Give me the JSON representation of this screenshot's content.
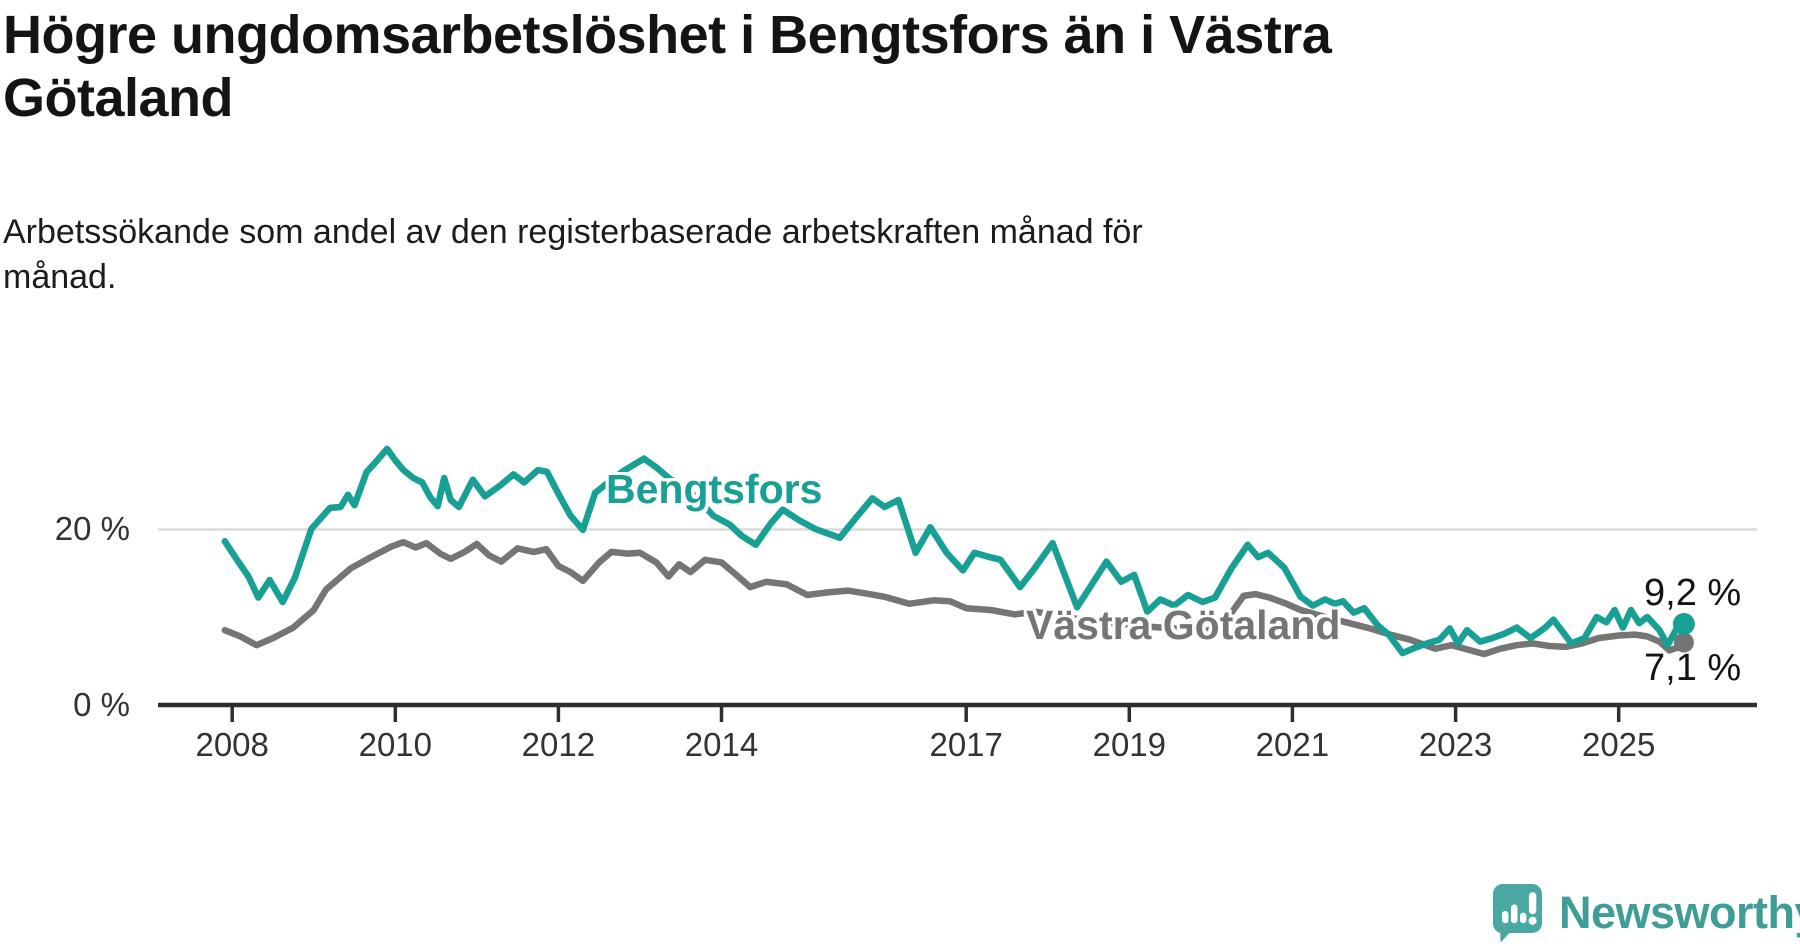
{
  "header": {
    "title": "Högre ungdomsarbetslöshet i Bengtsfors än i Västra Götaland",
    "title_lines": [
      "Högre ungdomsarbetslöshet i Bengtsfors än i Västra",
      "Götaland"
    ],
    "subtitle": "Arbetssökande som andel av den registerbaserade arbetskraften månad för månad.",
    "subtitle_lines": [
      "Arbetssökande som andel av den registerbaserade arbetskraften månad för",
      "månad."
    ]
  },
  "colors": {
    "accent_teal": "#17a093",
    "series_gray": "#757575",
    "axis": "#2f2f2f",
    "gridline": "#dbdbdb",
    "text": "#1a1a1a",
    "logo_bubble": "#4aa8a2",
    "logo_text": "#3f9d97"
  },
  "branding": {
    "logo_text": "Newsworthy",
    "logo_icon": "speech-bubble-bar-chart-exclamation"
  },
  "chart_data": {
    "type": "line",
    "title": "Högre ungdomsarbetslöshet i Bengtsfors än i Västra Götaland",
    "subtitle": "Arbetssökande som andel av den registerbaserade arbetskraften månad för månad.",
    "unit": "%",
    "x_axis": {
      "range": [
        2007.9,
        2025.85
      ],
      "ticks": [
        2008,
        2010,
        2012,
        2014,
        2017,
        2019,
        2021,
        2023,
        2025
      ],
      "grid": false
    },
    "y_axis": {
      "range": [
        0,
        31
      ],
      "ticks": [
        {
          "value": 0,
          "label": "0 %"
        },
        {
          "value": 20,
          "label": "20 %"
        }
      ],
      "gridline_at": 20
    },
    "legend_position": "inline-labels",
    "series": [
      {
        "name": "Bengtsfors",
        "color": "#17a093",
        "end_value": 9.2,
        "end_label": "9,2 %",
        "points": [
          [
            2007.91,
            18.6
          ],
          [
            2008.08,
            16.2
          ],
          [
            2008.2,
            14.6
          ],
          [
            2008.32,
            12.2
          ],
          [
            2008.46,
            14.2
          ],
          [
            2008.55,
            12.8
          ],
          [
            2008.62,
            11.7
          ],
          [
            2008.77,
            14.5
          ],
          [
            2008.97,
            20.0
          ],
          [
            2009.2,
            22.4
          ],
          [
            2009.33,
            22.5
          ],
          [
            2009.42,
            23.9
          ],
          [
            2009.5,
            22.7
          ],
          [
            2009.65,
            26.5
          ],
          [
            2009.75,
            27.5
          ],
          [
            2009.9,
            29.1
          ],
          [
            2010.0,
            27.8
          ],
          [
            2010.1,
            26.7
          ],
          [
            2010.22,
            25.8
          ],
          [
            2010.33,
            25.3
          ],
          [
            2010.43,
            23.6
          ],
          [
            2010.52,
            22.6
          ],
          [
            2010.6,
            25.8
          ],
          [
            2010.68,
            23.3
          ],
          [
            2010.78,
            22.5
          ],
          [
            2010.95,
            25.6
          ],
          [
            2011.1,
            23.7
          ],
          [
            2011.28,
            24.9
          ],
          [
            2011.45,
            26.2
          ],
          [
            2011.58,
            25.3
          ],
          [
            2011.75,
            26.7
          ],
          [
            2011.86,
            26.5
          ],
          [
            2012.0,
            24.0
          ],
          [
            2012.15,
            21.5
          ],
          [
            2012.3,
            19.9
          ],
          [
            2012.45,
            24.1
          ],
          [
            2012.6,
            25.2
          ],
          [
            2012.8,
            26.6
          ],
          [
            2013.05,
            28.0
          ],
          [
            2013.2,
            27.0
          ],
          [
            2013.38,
            25.6
          ],
          [
            2013.55,
            24.8
          ],
          [
            2013.75,
            23.0
          ],
          [
            2013.9,
            21.5
          ],
          [
            2014.1,
            20.5
          ],
          [
            2014.25,
            19.2
          ],
          [
            2014.42,
            18.2
          ],
          [
            2014.6,
            20.6
          ],
          [
            2014.75,
            22.2
          ],
          [
            2014.95,
            21.0
          ],
          [
            2015.15,
            20.0
          ],
          [
            2015.3,
            19.5
          ],
          [
            2015.45,
            19.0
          ],
          [
            2015.65,
            21.3
          ],
          [
            2015.85,
            23.5
          ],
          [
            2016.0,
            22.5
          ],
          [
            2016.17,
            23.3
          ],
          [
            2016.38,
            17.3
          ],
          [
            2016.56,
            20.2
          ],
          [
            2016.76,
            17.3
          ],
          [
            2016.96,
            15.3
          ],
          [
            2017.1,
            17.3
          ],
          [
            2017.25,
            16.9
          ],
          [
            2017.42,
            16.5
          ],
          [
            2017.66,
            13.4
          ],
          [
            2017.82,
            15.3
          ],
          [
            2018.06,
            18.4
          ],
          [
            2018.36,
            11.1
          ],
          [
            2018.72,
            16.3
          ],
          [
            2018.9,
            14.0
          ],
          [
            2019.06,
            14.8
          ],
          [
            2019.22,
            10.6
          ],
          [
            2019.38,
            12.0
          ],
          [
            2019.55,
            11.3
          ],
          [
            2019.72,
            12.5
          ],
          [
            2019.9,
            11.7
          ],
          [
            2020.05,
            12.2
          ],
          [
            2020.25,
            15.5
          ],
          [
            2020.45,
            18.2
          ],
          [
            2020.58,
            16.8
          ],
          [
            2020.7,
            17.3
          ],
          [
            2020.9,
            15.6
          ],
          [
            2021.1,
            12.3
          ],
          [
            2021.25,
            11.3
          ],
          [
            2021.4,
            12.0
          ],
          [
            2021.52,
            11.5
          ],
          [
            2021.62,
            11.8
          ],
          [
            2021.75,
            10.5
          ],
          [
            2021.88,
            11.0
          ],
          [
            2022.05,
            9.0
          ],
          [
            2022.18,
            8.0
          ],
          [
            2022.35,
            5.9
          ],
          [
            2022.5,
            6.5
          ],
          [
            2022.65,
            7.0
          ],
          [
            2022.8,
            7.4
          ],
          [
            2022.93,
            8.7
          ],
          [
            2023.03,
            7.0
          ],
          [
            2023.14,
            8.5
          ],
          [
            2023.3,
            7.2
          ],
          [
            2023.45,
            7.6
          ],
          [
            2023.6,
            8.1
          ],
          [
            2023.75,
            8.8
          ],
          [
            2023.92,
            7.6
          ],
          [
            2024.1,
            8.8
          ],
          [
            2024.2,
            9.7
          ],
          [
            2024.42,
            7.0
          ],
          [
            2024.58,
            7.6
          ],
          [
            2024.73,
            10.0
          ],
          [
            2024.85,
            9.4
          ],
          [
            2024.95,
            10.8
          ],
          [
            2025.05,
            8.8
          ],
          [
            2025.15,
            10.8
          ],
          [
            2025.25,
            9.3
          ],
          [
            2025.35,
            10.0
          ],
          [
            2025.5,
            8.5
          ],
          [
            2025.6,
            6.8
          ],
          [
            2025.7,
            8.5
          ],
          [
            2025.8,
            9.2
          ]
        ]
      },
      {
        "name": "Västra Götaland",
        "color": "#757575",
        "end_value": 7.1,
        "end_label": "7,1 %",
        "points": [
          [
            2007.91,
            8.5
          ],
          [
            2008.1,
            7.8
          ],
          [
            2008.3,
            6.8
          ],
          [
            2008.5,
            7.6
          ],
          [
            2008.75,
            8.8
          ],
          [
            2009.0,
            10.8
          ],
          [
            2009.15,
            13.1
          ],
          [
            2009.45,
            15.5
          ],
          [
            2009.7,
            16.8
          ],
          [
            2009.95,
            18.0
          ],
          [
            2010.1,
            18.5
          ],
          [
            2010.25,
            17.9
          ],
          [
            2010.38,
            18.4
          ],
          [
            2010.55,
            17.2
          ],
          [
            2010.68,
            16.6
          ],
          [
            2010.85,
            17.4
          ],
          [
            2011.0,
            18.3
          ],
          [
            2011.15,
            17.0
          ],
          [
            2011.3,
            16.3
          ],
          [
            2011.5,
            17.8
          ],
          [
            2011.7,
            17.4
          ],
          [
            2011.85,
            17.7
          ],
          [
            2012.0,
            15.8
          ],
          [
            2012.15,
            15.1
          ],
          [
            2012.3,
            14.1
          ],
          [
            2012.5,
            16.2
          ],
          [
            2012.65,
            17.4
          ],
          [
            2012.85,
            17.2
          ],
          [
            2013.0,
            17.3
          ],
          [
            2013.2,
            16.2
          ],
          [
            2013.35,
            14.6
          ],
          [
            2013.48,
            16.0
          ],
          [
            2013.62,
            15.1
          ],
          [
            2013.8,
            16.5
          ],
          [
            2014.0,
            16.2
          ],
          [
            2014.18,
            14.8
          ],
          [
            2014.35,
            13.4
          ],
          [
            2014.55,
            14.0
          ],
          [
            2014.8,
            13.7
          ],
          [
            2015.05,
            12.5
          ],
          [
            2015.3,
            12.8
          ],
          [
            2015.55,
            13.0
          ],
          [
            2015.75,
            12.7
          ],
          [
            2016.0,
            12.3
          ],
          [
            2016.3,
            11.5
          ],
          [
            2016.6,
            11.9
          ],
          [
            2016.8,
            11.8
          ],
          [
            2017.0,
            11.0
          ],
          [
            2017.3,
            10.8
          ],
          [
            2017.6,
            10.3
          ],
          [
            2017.85,
            10.6
          ],
          [
            2018.1,
            10.2
          ],
          [
            2018.4,
            9.7
          ],
          [
            2018.75,
            9.4
          ],
          [
            2019.1,
            9.0
          ],
          [
            2019.4,
            8.8
          ],
          [
            2019.7,
            8.6
          ],
          [
            2019.95,
            8.4
          ],
          [
            2020.2,
            9.8
          ],
          [
            2020.4,
            12.4
          ],
          [
            2020.55,
            12.6
          ],
          [
            2020.72,
            12.2
          ],
          [
            2020.9,
            11.6
          ],
          [
            2021.1,
            10.8
          ],
          [
            2021.4,
            10.0
          ],
          [
            2021.7,
            9.3
          ],
          [
            2021.95,
            8.7
          ],
          [
            2022.2,
            8.0
          ],
          [
            2022.45,
            7.4
          ],
          [
            2022.75,
            6.4
          ],
          [
            2022.95,
            6.8
          ],
          [
            2023.15,
            6.3
          ],
          [
            2023.35,
            5.8
          ],
          [
            2023.55,
            6.4
          ],
          [
            2023.75,
            6.8
          ],
          [
            2023.95,
            7.0
          ],
          [
            2024.15,
            6.7
          ],
          [
            2024.35,
            6.6
          ],
          [
            2024.55,
            7.0
          ],
          [
            2024.75,
            7.6
          ],
          [
            2025.0,
            7.9
          ],
          [
            2025.2,
            8.0
          ],
          [
            2025.35,
            7.8
          ],
          [
            2025.5,
            7.2
          ],
          [
            2025.62,
            6.2
          ],
          [
            2025.72,
            6.5
          ],
          [
            2025.8,
            7.1
          ]
        ]
      }
    ]
  }
}
